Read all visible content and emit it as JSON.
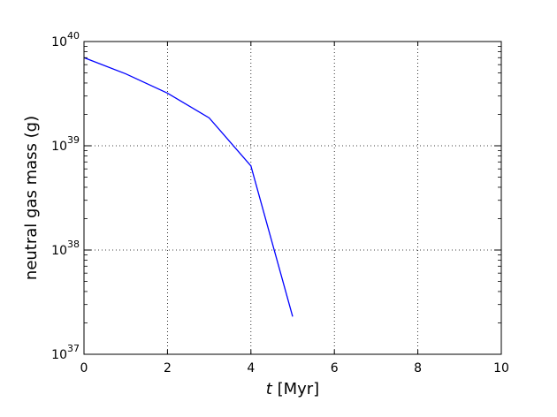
{
  "chart_data": {
    "type": "line",
    "title": "",
    "xlabel_italic": "t",
    "xlabel_rest": " [Myr]",
    "ylabel": "neutral gas mass (g)",
    "xlim": [
      0,
      10
    ],
    "ylim_log10": [
      37,
      40
    ],
    "yscale": "log",
    "grid": true,
    "x_ticks": [
      {
        "value": 0,
        "label": "0"
      },
      {
        "value": 2,
        "label": "2"
      },
      {
        "value": 4,
        "label": "4"
      },
      {
        "value": 6,
        "label": "6"
      },
      {
        "value": 8,
        "label": "8"
      },
      {
        "value": 10,
        "label": "10"
      }
    ],
    "y_ticks": [
      {
        "exp": 37,
        "base": "10",
        "sup": "37"
      },
      {
        "exp": 38,
        "base": "10",
        "sup": "38"
      },
      {
        "exp": 39,
        "base": "10",
        "sup": "39"
      },
      {
        "exp": 40,
        "base": "10",
        "sup": "40"
      }
    ],
    "series": [
      {
        "color": "#0000ff",
        "x": [
          0,
          1,
          2,
          3,
          4,
          5
        ],
        "y": [
          7e+39,
          4.9e+39,
          3.2e+39,
          1.85e+39,
          6.4e+38,
          2.3e+37
        ]
      }
    ]
  }
}
